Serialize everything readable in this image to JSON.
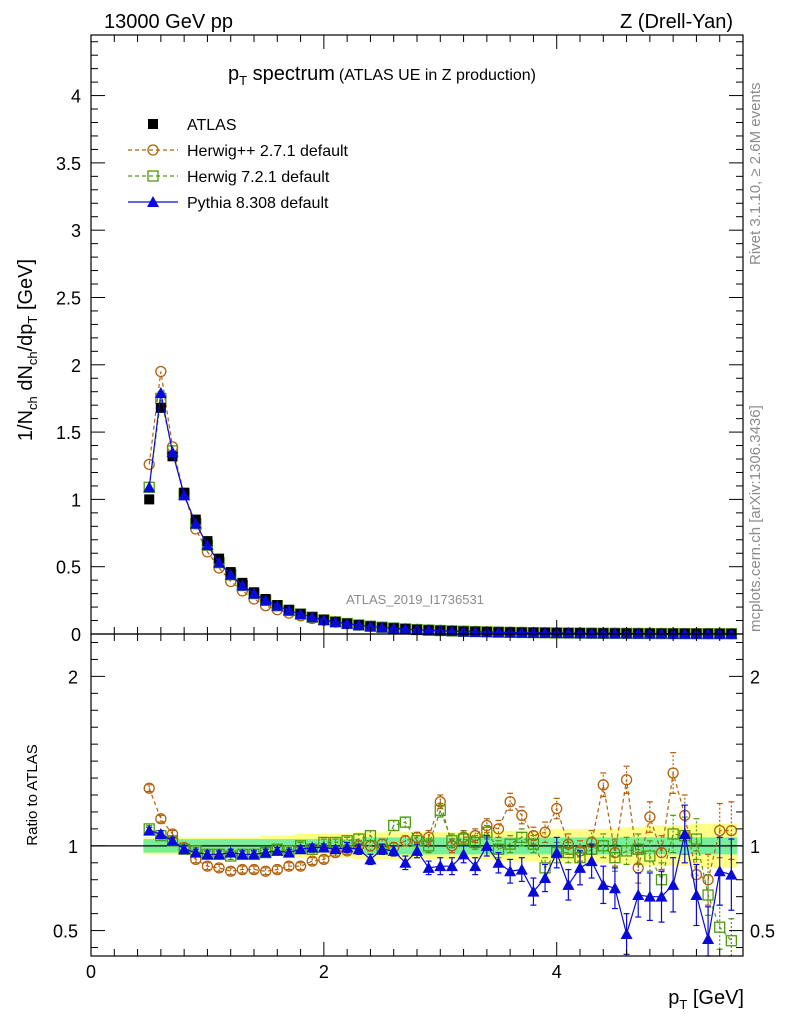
{
  "header": {
    "left": "13000 GeV pp",
    "right": "Z (Drell-Yan)"
  },
  "main_title": {
    "main": "p",
    "sub": "T",
    "rest": " spectrum",
    "small": "(ATLAS UE in Z production)"
  },
  "side_labels": {
    "rivet": "Rivet 3.1.10, ≥ 2.6M events",
    "mcplots": "mcplots.cern.ch [arXiv:1306.3436]"
  },
  "watermark": "ATLAS_2019_I1736531",
  "colors": {
    "atlas": "#000000",
    "herwig27": "#b3600b",
    "herwig72": "#4f9a12",
    "pythia": "#0a0ad8",
    "band_outer": "#ffff88",
    "band_inner": "#77ee99"
  },
  "chart_data": [
    {
      "type": "scatter",
      "panel": "main",
      "ylabel": "1/N_ch dN_ch/dp_T [GeV]",
      "xlim": [
        0,
        5.6
      ],
      "ylim": [
        0,
        4.45
      ],
      "yticks": [
        "0",
        "0.5",
        "1",
        "1.5",
        "2",
        "2.5",
        "3",
        "3.5",
        "4"
      ],
      "legend_position": "top-left",
      "x": [
        0.5,
        0.6,
        0.7,
        0.8,
        0.9,
        1.0,
        1.1,
        1.2,
        1.3,
        1.4,
        1.5,
        1.6,
        1.7,
        1.8,
        1.9,
        2.0,
        2.1,
        2.2,
        2.3,
        2.4,
        2.5,
        2.6,
        2.7,
        2.8,
        2.9,
        3.0,
        3.1,
        3.2,
        3.3,
        3.4,
        3.5,
        3.6,
        3.7,
        3.8,
        3.9,
        4.0,
        4.1,
        4.2,
        4.3,
        4.4,
        4.5,
        4.6,
        4.7,
        4.8,
        4.9,
        5.0,
        5.1,
        5.2,
        5.3,
        5.4,
        5.5
      ],
      "series": [
        {
          "name": "ATLAS",
          "values": [
            1.0,
            1.68,
            1.32,
            1.05,
            0.85,
            0.69,
            0.56,
            0.46,
            0.38,
            0.31,
            0.26,
            0.215,
            0.18,
            0.15,
            0.125,
            0.105,
            0.09,
            0.077,
            0.066,
            0.057,
            0.049,
            0.043,
            0.037,
            0.032,
            0.028,
            0.025,
            0.022,
            0.019,
            0.017,
            0.015,
            0.013,
            0.012,
            0.011,
            0.01,
            0.009,
            0.008,
            0.0073,
            0.0066,
            0.006,
            0.0054,
            0.0049,
            0.0044,
            0.004,
            0.0036,
            0.0033,
            0.003,
            0.0027,
            0.0025,
            0.0023,
            0.0021,
            0.0019
          ]
        },
        {
          "name": "Herwig++ 2.7.1 default",
          "values": [
            1.26,
            1.95,
            1.39,
            1.04,
            0.78,
            0.61,
            0.49,
            0.39,
            0.32,
            0.26,
            0.21,
            0.18,
            0.155,
            0.135,
            0.115,
            0.1,
            0.087,
            0.076,
            0.066,
            0.057,
            0.05,
            0.043,
            0.038,
            0.034,
            0.03,
            0.027,
            0.024,
            0.021,
            0.019,
            0.017,
            0.015,
            0.013,
            0.012,
            0.011,
            0.0098,
            0.0088,
            0.0079,
            0.0071,
            0.0064,
            0.0058,
            0.0052,
            0.0047,
            0.0043,
            0.0038,
            0.0034,
            0.0031,
            0.0028,
            0.0026,
            0.0024,
            0.0022,
            0.002
          ]
        },
        {
          "name": "Herwig 7.2.1 default",
          "values": [
            1.09,
            1.75,
            1.36,
            1.04,
            0.82,
            0.66,
            0.53,
            0.44,
            0.36,
            0.3,
            0.25,
            0.21,
            0.175,
            0.148,
            0.125,
            0.105,
            0.09,
            0.078,
            0.067,
            0.058,
            0.05,
            0.044,
            0.038,
            0.033,
            0.029,
            0.026,
            0.023,
            0.02,
            0.018,
            0.016,
            0.014,
            0.012,
            0.011,
            0.01,
            0.009,
            0.008,
            0.0072,
            0.0065,
            0.0058,
            0.0052,
            0.0047,
            0.0042,
            0.0038,
            0.0034,
            0.0031,
            0.0028,
            0.0025,
            0.0023,
            0.0021,
            0.0019,
            0.0017
          ]
        },
        {
          "name": "Pythia 8.308 default",
          "values": [
            1.09,
            1.79,
            1.35,
            1.03,
            0.82,
            0.66,
            0.53,
            0.44,
            0.36,
            0.3,
            0.25,
            0.21,
            0.175,
            0.147,
            0.124,
            0.104,
            0.089,
            0.076,
            0.065,
            0.056,
            0.048,
            0.042,
            0.036,
            0.031,
            0.027,
            0.024,
            0.021,
            0.018,
            0.016,
            0.014,
            0.012,
            0.011,
            0.0096,
            0.0086,
            0.0077,
            0.0069,
            0.0062,
            0.0056,
            0.005,
            0.0045,
            0.004,
            0.0036,
            0.0032,
            0.0029,
            0.0026,
            0.0023,
            0.0021,
            0.0019,
            0.0017,
            0.0015,
            0.0014
          ]
        }
      ]
    },
    {
      "type": "line",
      "panel": "ratio",
      "xlabel": "p_T [GeV]",
      "ylabel": "Ratio to ATLAS",
      "xlim": [
        0,
        5.6
      ],
      "ylim": [
        0.35,
        2.25
      ],
      "xticks": [
        "0",
        "2",
        "4"
      ],
      "yticks": [
        "0.5",
        "1",
        "2"
      ],
      "reference_line": 1,
      "x": [
        0.5,
        0.6,
        0.7,
        0.8,
        0.9,
        1.0,
        1.1,
        1.2,
        1.3,
        1.4,
        1.5,
        1.6,
        1.7,
        1.8,
        1.9,
        2.0,
        2.1,
        2.2,
        2.3,
        2.4,
        2.5,
        2.6,
        2.7,
        2.8,
        2.9,
        3.0,
        3.1,
        3.2,
        3.3,
        3.4,
        3.5,
        3.6,
        3.7,
        3.8,
        3.9,
        4.0,
        4.1,
        4.2,
        4.3,
        4.4,
        4.5,
        4.6,
        4.7,
        4.8,
        4.9,
        5.0,
        5.1,
        5.2,
        5.3,
        5.4,
        5.5
      ],
      "band_inner": [
        0.04,
        0.04,
        0.04,
        0.04,
        0.04,
        0.04,
        0.04,
        0.04,
        0.04,
        0.04,
        0.04,
        0.04,
        0.04,
        0.04,
        0.04,
        0.04,
        0.04,
        0.04,
        0.04,
        0.05,
        0.05,
        0.05,
        0.05,
        0.05,
        0.05,
        0.05,
        0.05,
        0.05,
        0.05,
        0.05,
        0.05,
        0.05,
        0.05,
        0.05,
        0.05,
        0.05,
        0.05,
        0.05,
        0.05,
        0.05,
        0.05,
        0.05,
        0.05,
        0.05,
        0.05,
        0.05,
        0.05,
        0.05,
        0.05,
        0.05,
        0.05
      ],
      "band_outer": [
        0.05,
        0.05,
        0.05,
        0.05,
        0.05,
        0.05,
        0.05,
        0.05,
        0.05,
        0.05,
        0.06,
        0.06,
        0.06,
        0.07,
        0.07,
        0.07,
        0.07,
        0.07,
        0.08,
        0.08,
        0.08,
        0.08,
        0.08,
        0.08,
        0.08,
        0.08,
        0.08,
        0.08,
        0.08,
        0.08,
        0.09,
        0.09,
        0.09,
        0.09,
        0.09,
        0.1,
        0.1,
        0.1,
        0.1,
        0.1,
        0.1,
        0.11,
        0.11,
        0.12,
        0.12,
        0.12,
        0.12,
        0.13,
        0.13,
        0.13,
        0.13
      ],
      "series": [
        {
          "name": "Herwig++ 2.7.1 default",
          "values": [
            1.34,
            1.16,
            1.07,
            0.99,
            0.92,
            0.88,
            0.87,
            0.85,
            0.86,
            0.86,
            0.85,
            0.86,
            0.88,
            0.88,
            0.91,
            0.92,
            0.96,
            0.97,
            1.0,
            1.0,
            1.01,
            0.99,
            1.03,
            1.05,
            1.05,
            1.26,
            1.0,
            1.05,
            1.06,
            1.12,
            1.1,
            1.26,
            1.18,
            1.06,
            1.08,
            1.22,
            1.01,
            0.97,
            1.02,
            1.36,
            0.96,
            1.39,
            0.87,
            1.17,
            0.96,
            1.43,
            1.18,
            0.83,
            0.8,
            1.09,
            1.09
          ],
          "errors": [
            0.02,
            0.02,
            0.02,
            0.02,
            0.02,
            0.02,
            0.02,
            0.02,
            0.02,
            0.02,
            0.02,
            0.02,
            0.02,
            0.02,
            0.02,
            0.02,
            0.02,
            0.02,
            0.03,
            0.03,
            0.03,
            0.03,
            0.03,
            0.03,
            0.04,
            0.04,
            0.04,
            0.04,
            0.04,
            0.04,
            0.05,
            0.05,
            0.05,
            0.05,
            0.06,
            0.06,
            0.06,
            0.06,
            0.07,
            0.07,
            0.08,
            0.08,
            0.09,
            0.09,
            0.1,
            0.12,
            0.12,
            0.14,
            0.15,
            0.16,
            0.17
          ]
        },
        {
          "name": "Herwig 7.2.1 default",
          "values": [
            1.1,
            1.06,
            1.03,
            0.98,
            0.97,
            0.95,
            0.95,
            0.94,
            0.95,
            0.95,
            0.96,
            0.98,
            0.97,
            1.0,
            0.98,
            1.02,
            1.02,
            1.03,
            1.04,
            1.06,
            0.98,
            1.12,
            1.14,
            1.03,
            1.0,
            1.21,
            1.03,
            1.04,
            1.02,
            1.08,
            0.98,
            1.01,
            1.05,
            1.01,
            0.87,
            0.96,
            0.96,
            0.93,
            0.98,
            1.0,
            0.93,
            0.97,
            0.98,
            0.94,
            0.8,
            1.07,
            1.06,
            1.04,
            0.71,
            0.52,
            0.44
          ],
          "errors": [
            0.02,
            0.02,
            0.02,
            0.02,
            0.02,
            0.02,
            0.02,
            0.02,
            0.02,
            0.02,
            0.02,
            0.02,
            0.02,
            0.02,
            0.02,
            0.02,
            0.02,
            0.02,
            0.03,
            0.03,
            0.03,
            0.03,
            0.03,
            0.03,
            0.04,
            0.04,
            0.04,
            0.04,
            0.04,
            0.04,
            0.05,
            0.05,
            0.05,
            0.05,
            0.06,
            0.06,
            0.06,
            0.06,
            0.07,
            0.07,
            0.08,
            0.08,
            0.09,
            0.09,
            0.1,
            0.11,
            0.11,
            0.12,
            0.12,
            0.13,
            0.13
          ]
        },
        {
          "name": "Pythia 8.308 default",
          "values": [
            1.09,
            1.07,
            1.03,
            0.98,
            0.96,
            0.95,
            0.95,
            0.96,
            0.95,
            0.95,
            0.96,
            0.97,
            0.96,
            0.98,
            0.99,
            0.99,
            0.98,
            0.99,
            0.98,
            0.92,
            0.98,
            0.97,
            0.9,
            0.97,
            0.87,
            0.88,
            0.88,
            0.95,
            0.88,
            1.0,
            0.9,
            0.85,
            0.86,
            0.73,
            0.81,
            0.96,
            0.77,
            0.87,
            0.91,
            0.77,
            0.75,
            0.48,
            0.71,
            0.7,
            0.7,
            0.77,
            1.07,
            0.71,
            0.45,
            0.85,
            0.83
          ],
          "errors": [
            0.02,
            0.02,
            0.02,
            0.02,
            0.02,
            0.02,
            0.02,
            0.02,
            0.02,
            0.02,
            0.02,
            0.02,
            0.02,
            0.02,
            0.02,
            0.02,
            0.02,
            0.03,
            0.03,
            0.03,
            0.03,
            0.03,
            0.04,
            0.04,
            0.04,
            0.05,
            0.05,
            0.05,
            0.05,
            0.06,
            0.06,
            0.07,
            0.07,
            0.08,
            0.08,
            0.09,
            0.09,
            0.1,
            0.1,
            0.11,
            0.12,
            0.12,
            0.13,
            0.14,
            0.15,
            0.16,
            0.17,
            0.18,
            0.19,
            0.2,
            0.21
          ]
        }
      ]
    }
  ]
}
